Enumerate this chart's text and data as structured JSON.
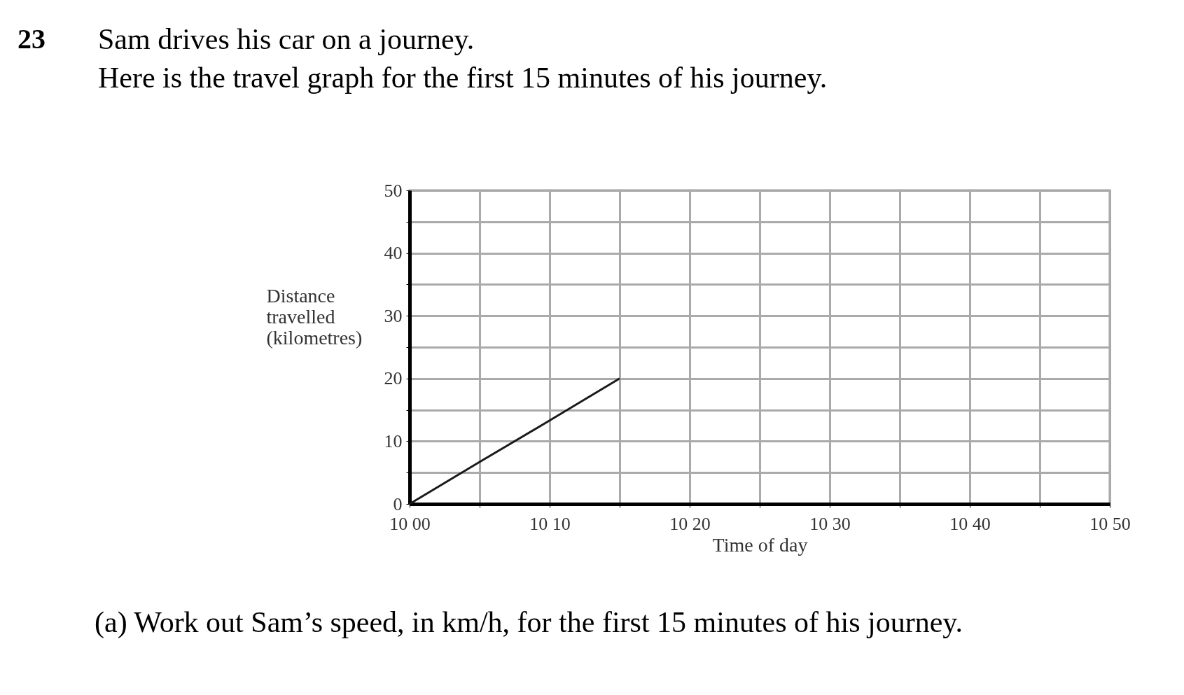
{
  "chart_data": {
    "type": "line",
    "title": "Sam drives his car on a journey.",
    "subtitle": "Here is the travel graph for the first 15 minutes of his journey.",
    "xlabel": "Time of day",
    "ylabel": "Distance travelled (kilometres)",
    "categories": [
      "10 00",
      null,
      "10 10",
      null,
      "10 20",
      null,
      "10 30",
      null,
      "10 40",
      null,
      "10 50"
    ],
    "series": [
      {
        "color": "#1a1a1a",
        "values": [
          0,
          6.7,
          13.3,
          20,
          null,
          null,
          null,
          null,
          null,
          null,
          null
        ]
      }
    ],
    "ylim": [
      0,
      50
    ],
    "yticks": [
      0,
      {
        "value": 5,
        "label": null
      },
      10,
      {
        "value": 15,
        "label": null
      },
      20,
      {
        "value": 25,
        "label": null
      },
      30,
      {
        "value": 35,
        "label": null
      },
      40,
      {
        "value": 45,
        "label": null
      },
      50
    ],
    "grid": true,
    "marker": "none",
    "line_style": "solid",
    "legend": false,
    "annotations": [
      "23",
      "(a) Work out Sam’s speed, in km/h, for the first 15 minutes of his journey."
    ]
  }
}
